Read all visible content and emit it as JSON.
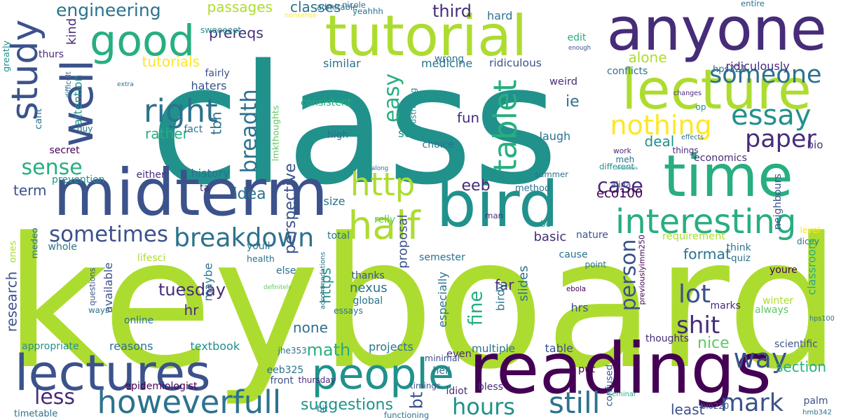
{
  "palette": [
    "#440154",
    "#472c7a",
    "#3b528b",
    "#2c728e",
    "#21918c",
    "#28ae80",
    "#5ec962",
    "#addc30",
    "#fde725"
  ],
  "words": [
    {
      "t": "keyboard",
      "c": 7
    },
    {
      "t": "class",
      "c": 4
    },
    {
      "t": "readings",
      "c": 0
    },
    {
      "t": "tutorial",
      "c": 7
    },
    {
      "t": "anyone",
      "c": 1
    },
    {
      "t": "time",
      "c": 5
    },
    {
      "t": "midterm",
      "c": 2
    },
    {
      "t": "bird",
      "c": 4
    },
    {
      "t": "lecture",
      "c": 7
    },
    {
      "t": "lectures",
      "c": 2
    },
    {
      "t": "people",
      "c": 4
    },
    {
      "t": "howeverfull",
      "c": 3
    },
    {
      "t": "interesting",
      "c": 5
    },
    {
      "t": "good",
      "c": 5
    },
    {
      "t": "well",
      "c": 2
    },
    {
      "t": "study",
      "c": 2
    },
    {
      "t": "right",
      "c": 3
    },
    {
      "t": "half",
      "c": 7
    },
    {
      "t": "still",
      "c": 3
    },
    {
      "t": "tablet",
      "c": 5
    },
    {
      "t": "someone",
      "c": 3
    },
    {
      "t": "essay",
      "c": 4
    },
    {
      "t": "nothing",
      "c": 8
    },
    {
      "t": "paper",
      "c": 1
    },
    {
      "t": "http",
      "c": 7
    },
    {
      "t": "easy",
      "c": 5
    },
    {
      "t": "breakdown",
      "c": 3
    },
    {
      "t": "breadth",
      "c": 3
    },
    {
      "t": "sometimes",
      "c": 2
    },
    {
      "t": "sense",
      "c": 5
    },
    {
      "t": "case",
      "c": 1
    },
    {
      "t": "person",
      "c": 2
    },
    {
      "t": "lot",
      "c": 2
    },
    {
      "t": "shit",
      "c": 1
    },
    {
      "t": "mark",
      "c": 2
    },
    {
      "t": "way",
      "c": 2
    },
    {
      "t": "hours",
      "c": 4
    },
    {
      "t": "less",
      "c": 1
    },
    {
      "t": "perspective",
      "c": 2
    },
    {
      "t": "engineering",
      "c": 3
    },
    {
      "t": "tutorials",
      "c": 8
    },
    {
      "t": "passages",
      "c": 7
    },
    {
      "t": "prereqs",
      "c": 1
    },
    {
      "t": "classes",
      "c": 3
    },
    {
      "t": "third",
      "c": 1
    },
    {
      "t": "tuesday",
      "c": 1
    },
    {
      "t": "suggestions",
      "c": 4
    },
    {
      "t": "math",
      "c": 5
    },
    {
      "t": "fine",
      "c": 5
    },
    {
      "t": "bt",
      "c": 2
    },
    {
      "t": "eeb",
      "c": 1
    },
    {
      "t": "nice",
      "c": 6
    },
    {
      "t": "section",
      "c": 5
    },
    {
      "t": "format",
      "c": 3
    },
    {
      "t": "least",
      "c": 2
    },
    {
      "t": "term",
      "c": 2
    },
    {
      "t": "rather",
      "c": 5
    },
    {
      "t": "idea",
      "c": 3
    },
    {
      "t": "hr",
      "c": 1
    },
    {
      "t": "available",
      "c": 2
    },
    {
      "t": "research",
      "c": 2
    },
    {
      "t": "https",
      "c": 4
    },
    {
      "t": "none",
      "c": 3
    },
    {
      "t": "proposal",
      "c": 2
    },
    {
      "t": "source",
      "c": 4
    },
    {
      "t": "fun",
      "c": 1
    },
    {
      "t": "deal",
      "c": 4
    },
    {
      "t": "alone",
      "c": 7
    },
    {
      "t": "ie",
      "c": 3
    },
    {
      "t": "eco100",
      "c": 0
    },
    {
      "t": "economics",
      "c": 1
    },
    {
      "t": "neighbours",
      "c": 2
    },
    {
      "t": "requirement",
      "c": 7
    },
    {
      "t": "basic",
      "c": 1
    },
    {
      "t": "slides",
      "c": 3
    },
    {
      "t": "especially",
      "c": 3
    },
    {
      "t": "nexus",
      "c": 3
    },
    {
      "t": "projects",
      "c": 3
    },
    {
      "t": "textbook",
      "c": 4
    },
    {
      "t": "reasons",
      "c": 3
    },
    {
      "t": "history",
      "c": 3
    },
    {
      "t": "haters",
      "c": 2
    },
    {
      "t": "fairly",
      "c": 2
    },
    {
      "t": "similar",
      "c": 3
    },
    {
      "t": "medicine",
      "c": 3
    },
    {
      "t": "ridiculous",
      "c": 2
    },
    {
      "t": "weird",
      "c": 1
    },
    {
      "t": "hard",
      "c": 3
    },
    {
      "t": "wrong",
      "c": 3
    },
    {
      "t": "laugh",
      "c": 3
    },
    {
      "t": "summer",
      "c": 3
    },
    {
      "t": "method",
      "c": 3
    },
    {
      "t": "size",
      "c": 3
    },
    {
      "t": "far",
      "c": 1
    },
    {
      "t": "semester",
      "c": 3
    },
    {
      "t": "thanks",
      "c": 2
    },
    {
      "t": "essays",
      "c": 3
    },
    {
      "t": "global",
      "c": 3
    },
    {
      "t": "even",
      "c": 1
    },
    {
      "t": "multiple",
      "c": 3
    },
    {
      "t": "table",
      "c": 2
    },
    {
      "t": "hell",
      "c": 3
    },
    {
      "t": "minimal",
      "c": 2
    },
    {
      "t": "timings",
      "c": 2
    },
    {
      "t": "eeb325",
      "c": 3
    },
    {
      "t": "front",
      "c": 2
    },
    {
      "t": "idiot",
      "c": 1
    },
    {
      "t": "bless",
      "c": 1
    },
    {
      "t": "put",
      "c": 0
    },
    {
      "t": "hrs",
      "c": 2
    },
    {
      "t": "marks",
      "c": 1
    },
    {
      "t": "winter",
      "c": 7
    },
    {
      "t": "always",
      "c": 6
    },
    {
      "t": "scientific",
      "c": 2
    },
    {
      "t": "palm",
      "c": 2
    },
    {
      "t": "bio220",
      "c": 2
    },
    {
      "t": "hmb342",
      "c": 3
    },
    {
      "t": "epidemiologist",
      "c": 0
    },
    {
      "t": "timetable",
      "c": 3
    },
    {
      "t": "appropriate",
      "c": 4
    },
    {
      "t": "ones",
      "c": 7
    },
    {
      "t": "whole",
      "c": 3
    },
    {
      "t": "secret",
      "c": 0
    },
    {
      "t": "either",
      "c": 1
    },
    {
      "t": "prevention",
      "c": 4
    },
    {
      "t": "thurs",
      "c": 1
    },
    {
      "t": "kind",
      "c": 1
    },
    {
      "t": "sweeeeet",
      "c": 4
    },
    {
      "t": "nonsense",
      "c": 8
    },
    {
      "t": "admirable",
      "c": 3
    },
    {
      "t": "nicole",
      "c": 3
    },
    {
      "t": "yeahhh",
      "c": 3
    },
    {
      "t": "entire",
      "c": 3
    },
    {
      "t": "edit",
      "c": 5
    },
    {
      "t": "enough",
      "c": 2
    },
    {
      "t": "hps321",
      "c": 3
    },
    {
      "t": "ridiculously",
      "c": 1
    },
    {
      "t": "conflicts",
      "c": 3
    },
    {
      "t": "changes",
      "c": 1
    },
    {
      "t": "op",
      "c": 4
    },
    {
      "t": "thoughts",
      "c": 1
    },
    {
      "t": "bio",
      "c": 1
    },
    {
      "t": "different",
      "c": 4
    },
    {
      "t": "level",
      "c": 8
    },
    {
      "t": "dicey",
      "c": 3
    },
    {
      "t": "classroom",
      "c": 5
    },
    {
      "t": "think",
      "c": 3
    },
    {
      "t": "quiz",
      "c": 3
    },
    {
      "t": "youre",
      "c": 0
    },
    {
      "t": "hps100",
      "c": 3
    },
    {
      "t": "alina",
      "c": 2
    },
    {
      "t": "resources",
      "c": 4
    },
    {
      "t": "meh",
      "c": 3
    },
    {
      "t": "things",
      "c": 1
    },
    {
      "t": "effects",
      "c": 3
    },
    {
      "t": "work",
      "c": 1
    },
    {
      "t": "bc",
      "c": 4
    },
    {
      "t": "man",
      "c": 1
    },
    {
      "t": "relly",
      "c": 6
    },
    {
      "t": "total",
      "c": 3
    },
    {
      "t": "nature",
      "c": 2
    },
    {
      "t": "cause",
      "c": 3
    },
    {
      "t": "point",
      "c": 3
    },
    {
      "t": "birdy",
      "c": 3
    },
    {
      "t": "previouslyimm250",
      "c": 0
    },
    {
      "t": "confused",
      "c": 2
    },
    {
      "t": "seminar",
      "c": 5
    },
    {
      "t": "accommodations",
      "c": 3
    },
    {
      "t": "jhe353",
      "c": 3
    },
    {
      "t": "thursday",
      "c": 1
    },
    {
      "t": "definitely",
      "c": 6
    },
    {
      "t": "maybe",
      "c": 3
    },
    {
      "t": "else",
      "c": 3
    },
    {
      "t": "health",
      "c": 3
    },
    {
      "t": "youll",
      "c": 3
    },
    {
      "t": "lifesci",
      "c": 7
    },
    {
      "t": "questions",
      "c": 2
    },
    {
      "t": "online",
      "c": 3
    },
    {
      "t": "ways",
      "c": 3
    },
    {
      "t": "medeo",
      "c": 3
    },
    {
      "t": "ebola",
      "c": 0
    },
    {
      "t": "ta",
      "c": 1
    },
    {
      "t": "fact",
      "c": 3
    },
    {
      "t": "tbh",
      "c": 3
    },
    {
      "t": "guy",
      "c": 3
    },
    {
      "t": "along",
      "c": 3
    },
    {
      "t": "choice",
      "c": 3
    },
    {
      "t": "high",
      "c": 3
    },
    {
      "t": "frustrating",
      "c": 4
    },
    {
      "t": "lmkthoughts",
      "c": 6
    },
    {
      "t": "consistent",
      "c": 5
    },
    {
      "t": "attention",
      "c": 4
    },
    {
      "t": "cant",
      "c": 3
    },
    {
      "t": "difficult",
      "c": 3
    },
    {
      "t": "extra",
      "c": 3
    },
    {
      "t": "greatly",
      "c": 4
    },
    {
      "t": "bit",
      "c": 3
    },
    {
      "t": "functioning",
      "c": 3
    }
  ]
}
